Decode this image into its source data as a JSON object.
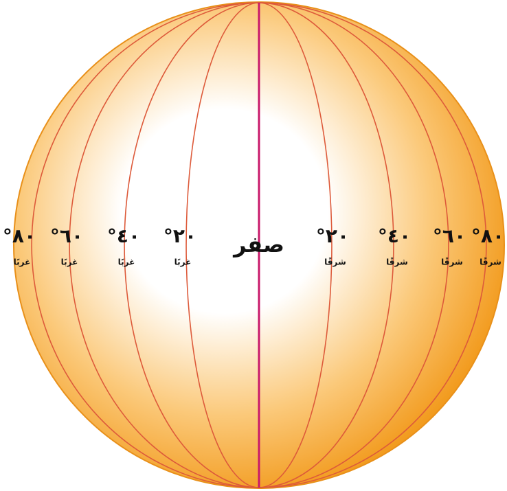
{
  "center_label": "صفر",
  "west": [
    {
      "degree": "٨٠°",
      "direction": "غربًا"
    },
    {
      "degree": "٦٠°",
      "direction": "غربًا"
    },
    {
      "degree": "٤٠°",
      "direction": "غربًا"
    },
    {
      "degree": "٢٠°",
      "direction": "غربًا"
    }
  ],
  "east": [
    {
      "degree": "٢٠°",
      "direction": "شرقًا"
    },
    {
      "degree": "٤٠°",
      "direction": "شرقًا"
    },
    {
      "degree": "٦٠°",
      "direction": "شرقًا"
    },
    {
      "degree": "٨٠°",
      "direction": "شرقًا"
    }
  ]
}
